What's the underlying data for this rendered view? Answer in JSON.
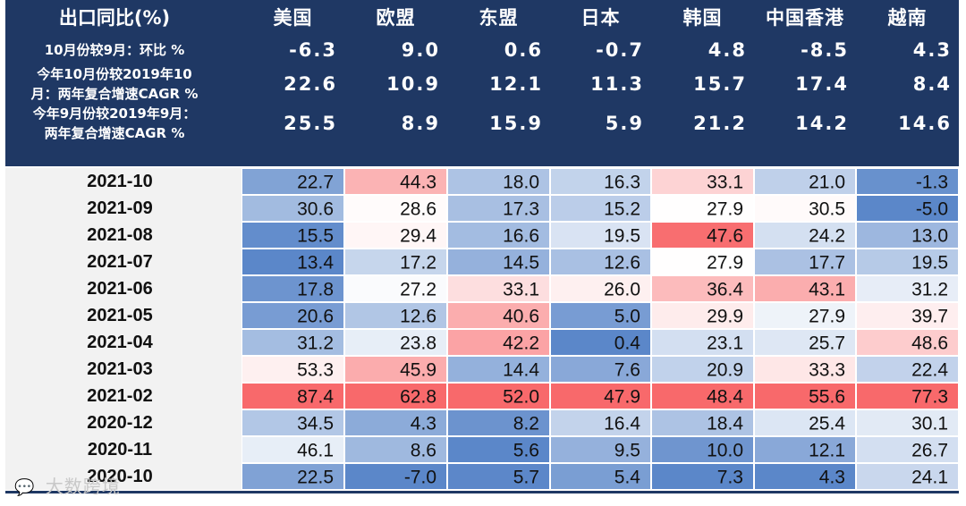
{
  "chart_data": {
    "type": "heatmap",
    "header": {
      "title": "出口同比(%)",
      "columns": [
        "美国",
        "欧盟",
        "东盟",
        "日本",
        "韩国",
        "中国香港",
        "越南"
      ]
    },
    "summary_rows": [
      {
        "label_lines": [
          "10月份较9月：环比 %"
        ],
        "values": [
          -6.3,
          9.0,
          0.6,
          -0.7,
          4.8,
          -8.5,
          4.3
        ]
      },
      {
        "label_lines": [
          "今年10月份较2019年10",
          "月：两年复合增速CAGR %"
        ],
        "values": [
          22.6,
          10.9,
          12.1,
          11.3,
          15.7,
          17.4,
          8.4
        ]
      },
      {
        "label_lines": [
          "今年9月份较2019年9月：",
          "两年复合增速CAGR %"
        ],
        "values": [
          25.5,
          8.9,
          15.9,
          5.9,
          21.2,
          14.2,
          14.6
        ]
      }
    ],
    "rows": [
      {
        "label": "2021-10",
        "values": [
          22.7,
          44.3,
          18.0,
          16.3,
          33.1,
          21.0,
          -1.3
        ]
      },
      {
        "label": "2021-09",
        "values": [
          30.6,
          28.6,
          17.3,
          15.2,
          27.9,
          30.5,
          -5.0
        ]
      },
      {
        "label": "2021-08",
        "values": [
          15.5,
          29.4,
          16.6,
          19.5,
          47.6,
          24.2,
          13.0
        ]
      },
      {
        "label": "2021-07",
        "values": [
          13.4,
          17.2,
          14.5,
          12.6,
          27.9,
          17.7,
          19.5
        ]
      },
      {
        "label": "2021-06",
        "values": [
          17.8,
          27.2,
          33.1,
          26.0,
          36.4,
          43.1,
          31.2
        ]
      },
      {
        "label": "2021-05",
        "values": [
          20.6,
          12.6,
          40.6,
          5.0,
          29.9,
          27.9,
          39.7
        ]
      },
      {
        "label": "2021-04",
        "values": [
          31.2,
          23.8,
          42.2,
          0.4,
          23.1,
          25.7,
          48.6
        ]
      },
      {
        "label": "2021-03",
        "values": [
          53.3,
          45.9,
          14.4,
          7.6,
          20.9,
          33.3,
          22.4
        ]
      },
      {
        "label": "2021-02",
        "values": [
          87.4,
          62.8,
          52.0,
          47.9,
          48.4,
          55.6,
          77.3
        ]
      },
      {
        "label": "2020-12",
        "values": [
          34.5,
          4.3,
          8.2,
          16.4,
          18.4,
          25.4,
          30.1
        ]
      },
      {
        "label": "2020-11",
        "values": [
          46.1,
          8.6,
          5.6,
          9.5,
          10.0,
          12.1,
          26.7
        ]
      },
      {
        "label": "2020-10",
        "values": [
          22.5,
          -7.0,
          5.7,
          5.4,
          7.3,
          4.3,
          24.1
        ]
      }
    ],
    "colors": {
      "header_bg": "#1f3864",
      "label_bg": "#f2f2f2",
      "low": "#5b87c9",
      "mid": "#ffffff",
      "high": "#f8696b"
    }
  },
  "watermark": {
    "icon": "chat-bubble-icon",
    "text": "大数跨境"
  }
}
